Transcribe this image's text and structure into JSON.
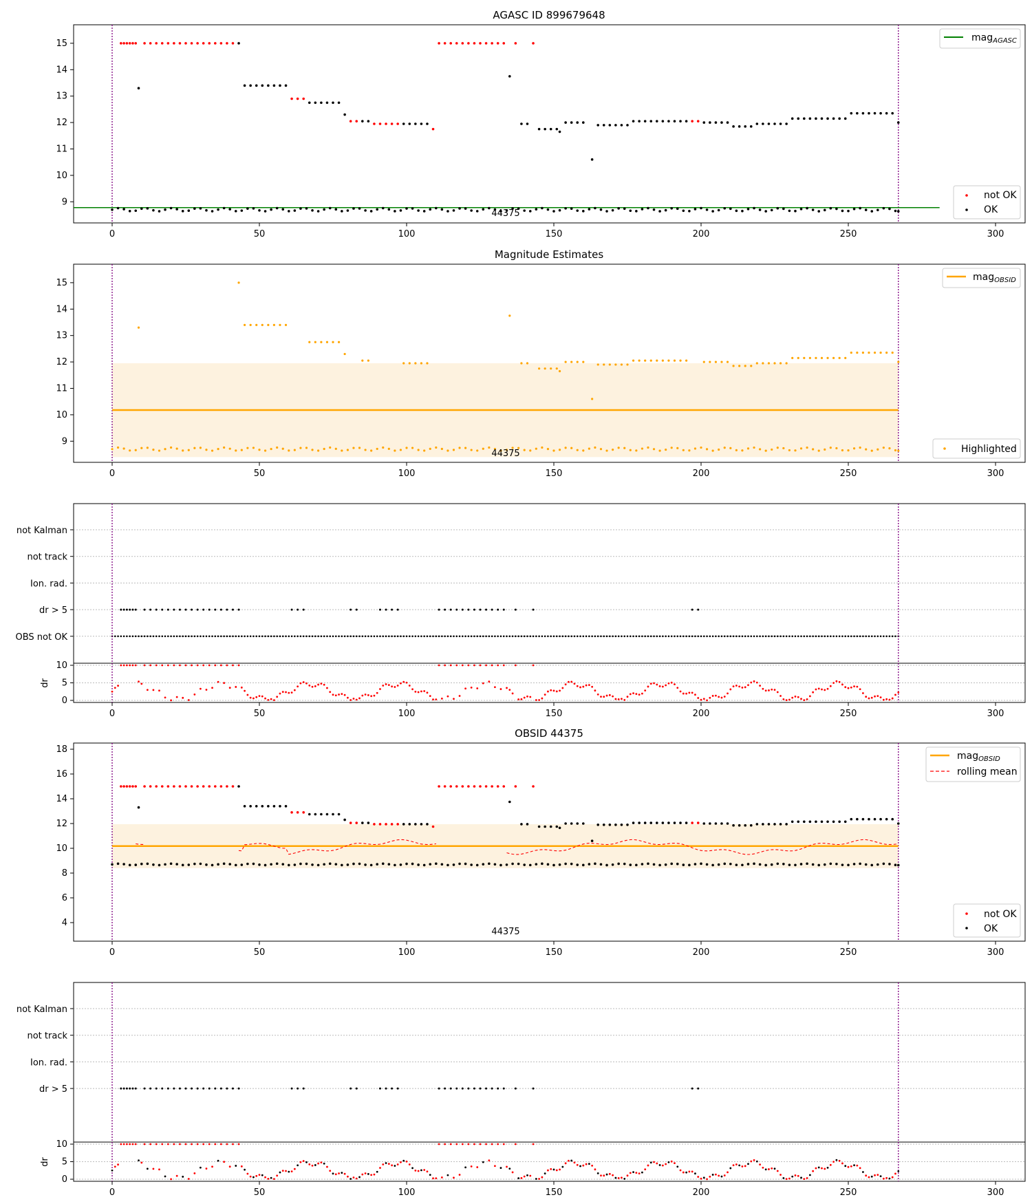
{
  "chart_data": [
    {
      "type": "scatter",
      "title": "AGASC ID 899679648",
      "xlim": [
        -13,
        310
      ],
      "ylim": [
        8.2,
        15.7
      ],
      "xticks": [
        "0",
        "50",
        "100",
        "150",
        "200",
        "250",
        "300"
      ],
      "yticks": [
        "9",
        "10",
        "11",
        "12",
        "13",
        "14",
        "15"
      ],
      "obsid_label": "44375",
      "vlines": [
        0,
        267
      ],
      "hline": {
        "label": "magAGASC",
        "value": 8.78,
        "color": "#008000"
      },
      "legend": {
        "lines": [
          {
            "label_main": "mag",
            "label_sub": "AGASC"
          }
        ],
        "points": [
          "not OK",
          "OK"
        ]
      },
      "series_note": "black = OK, red = not OK"
    },
    {
      "type": "scatter",
      "title": "Magnitude Estimates",
      "xlim": [
        -13,
        310
      ],
      "ylim": [
        8.2,
        15.7
      ],
      "xticks": [
        "0",
        "50",
        "100",
        "150",
        "200",
        "250",
        "300"
      ],
      "yticks": [
        "9",
        "10",
        "11",
        "12",
        "13",
        "14",
        "15"
      ],
      "obsid_label": "44375",
      "mean": 10.18,
      "band": [
        8.4,
        11.95
      ],
      "legend": {
        "line_main": "mag",
        "line_sub": "OBSID",
        "points": [
          "Highlighted"
        ]
      }
    },
    {
      "type": "scatter",
      "title": "",
      "categories": [
        "not Kalman",
        "not track",
        "Ion. rad.",
        "dr > 5",
        "OBS not OK"
      ],
      "dr_axis": {
        "label": "dr",
        "yticks": [
          "0",
          "5",
          "10"
        ],
        "ylim": [
          0,
          10
        ]
      },
      "xticks": [
        "0",
        "50",
        "100",
        "150",
        "200",
        "250",
        "300"
      ]
    },
    {
      "type": "scatter",
      "title": "OBSID 44375",
      "xlim": [
        -13,
        310
      ],
      "ylim": [
        2.5,
        18.5
      ],
      "xticks": [
        "0",
        "50",
        "100",
        "150",
        "200",
        "250",
        "300"
      ],
      "yticks": [
        "4",
        "6",
        "8",
        "10",
        "12",
        "14",
        "16",
        "18"
      ],
      "obsid_label": "44375",
      "mean": 10.18,
      "band": [
        8.4,
        11.95
      ],
      "legend": {
        "lines": [
          {
            "label_main": "mag",
            "label_sub": "OBSID"
          },
          {
            "label_main": "rolling mean"
          }
        ],
        "points": [
          "not OK",
          "OK"
        ]
      }
    },
    {
      "type": "scatter",
      "title": "",
      "categories": [
        "not Kalman",
        "not track",
        "Ion. rad.",
        "dr > 5"
      ],
      "dr_axis": {
        "label": "dr",
        "yticks": [
          "0",
          "5",
          "10"
        ],
        "ylim": [
          0,
          10
        ]
      },
      "xticks": [
        "0",
        "50",
        "100",
        "150",
        "200",
        "250",
        "300"
      ]
    }
  ],
  "colors": {
    "ok": "#000000",
    "not_ok": "#ff0000",
    "highlight": "#ffa500",
    "band": "#fdf2df",
    "agasc": "#008000",
    "vline": "#800080"
  }
}
